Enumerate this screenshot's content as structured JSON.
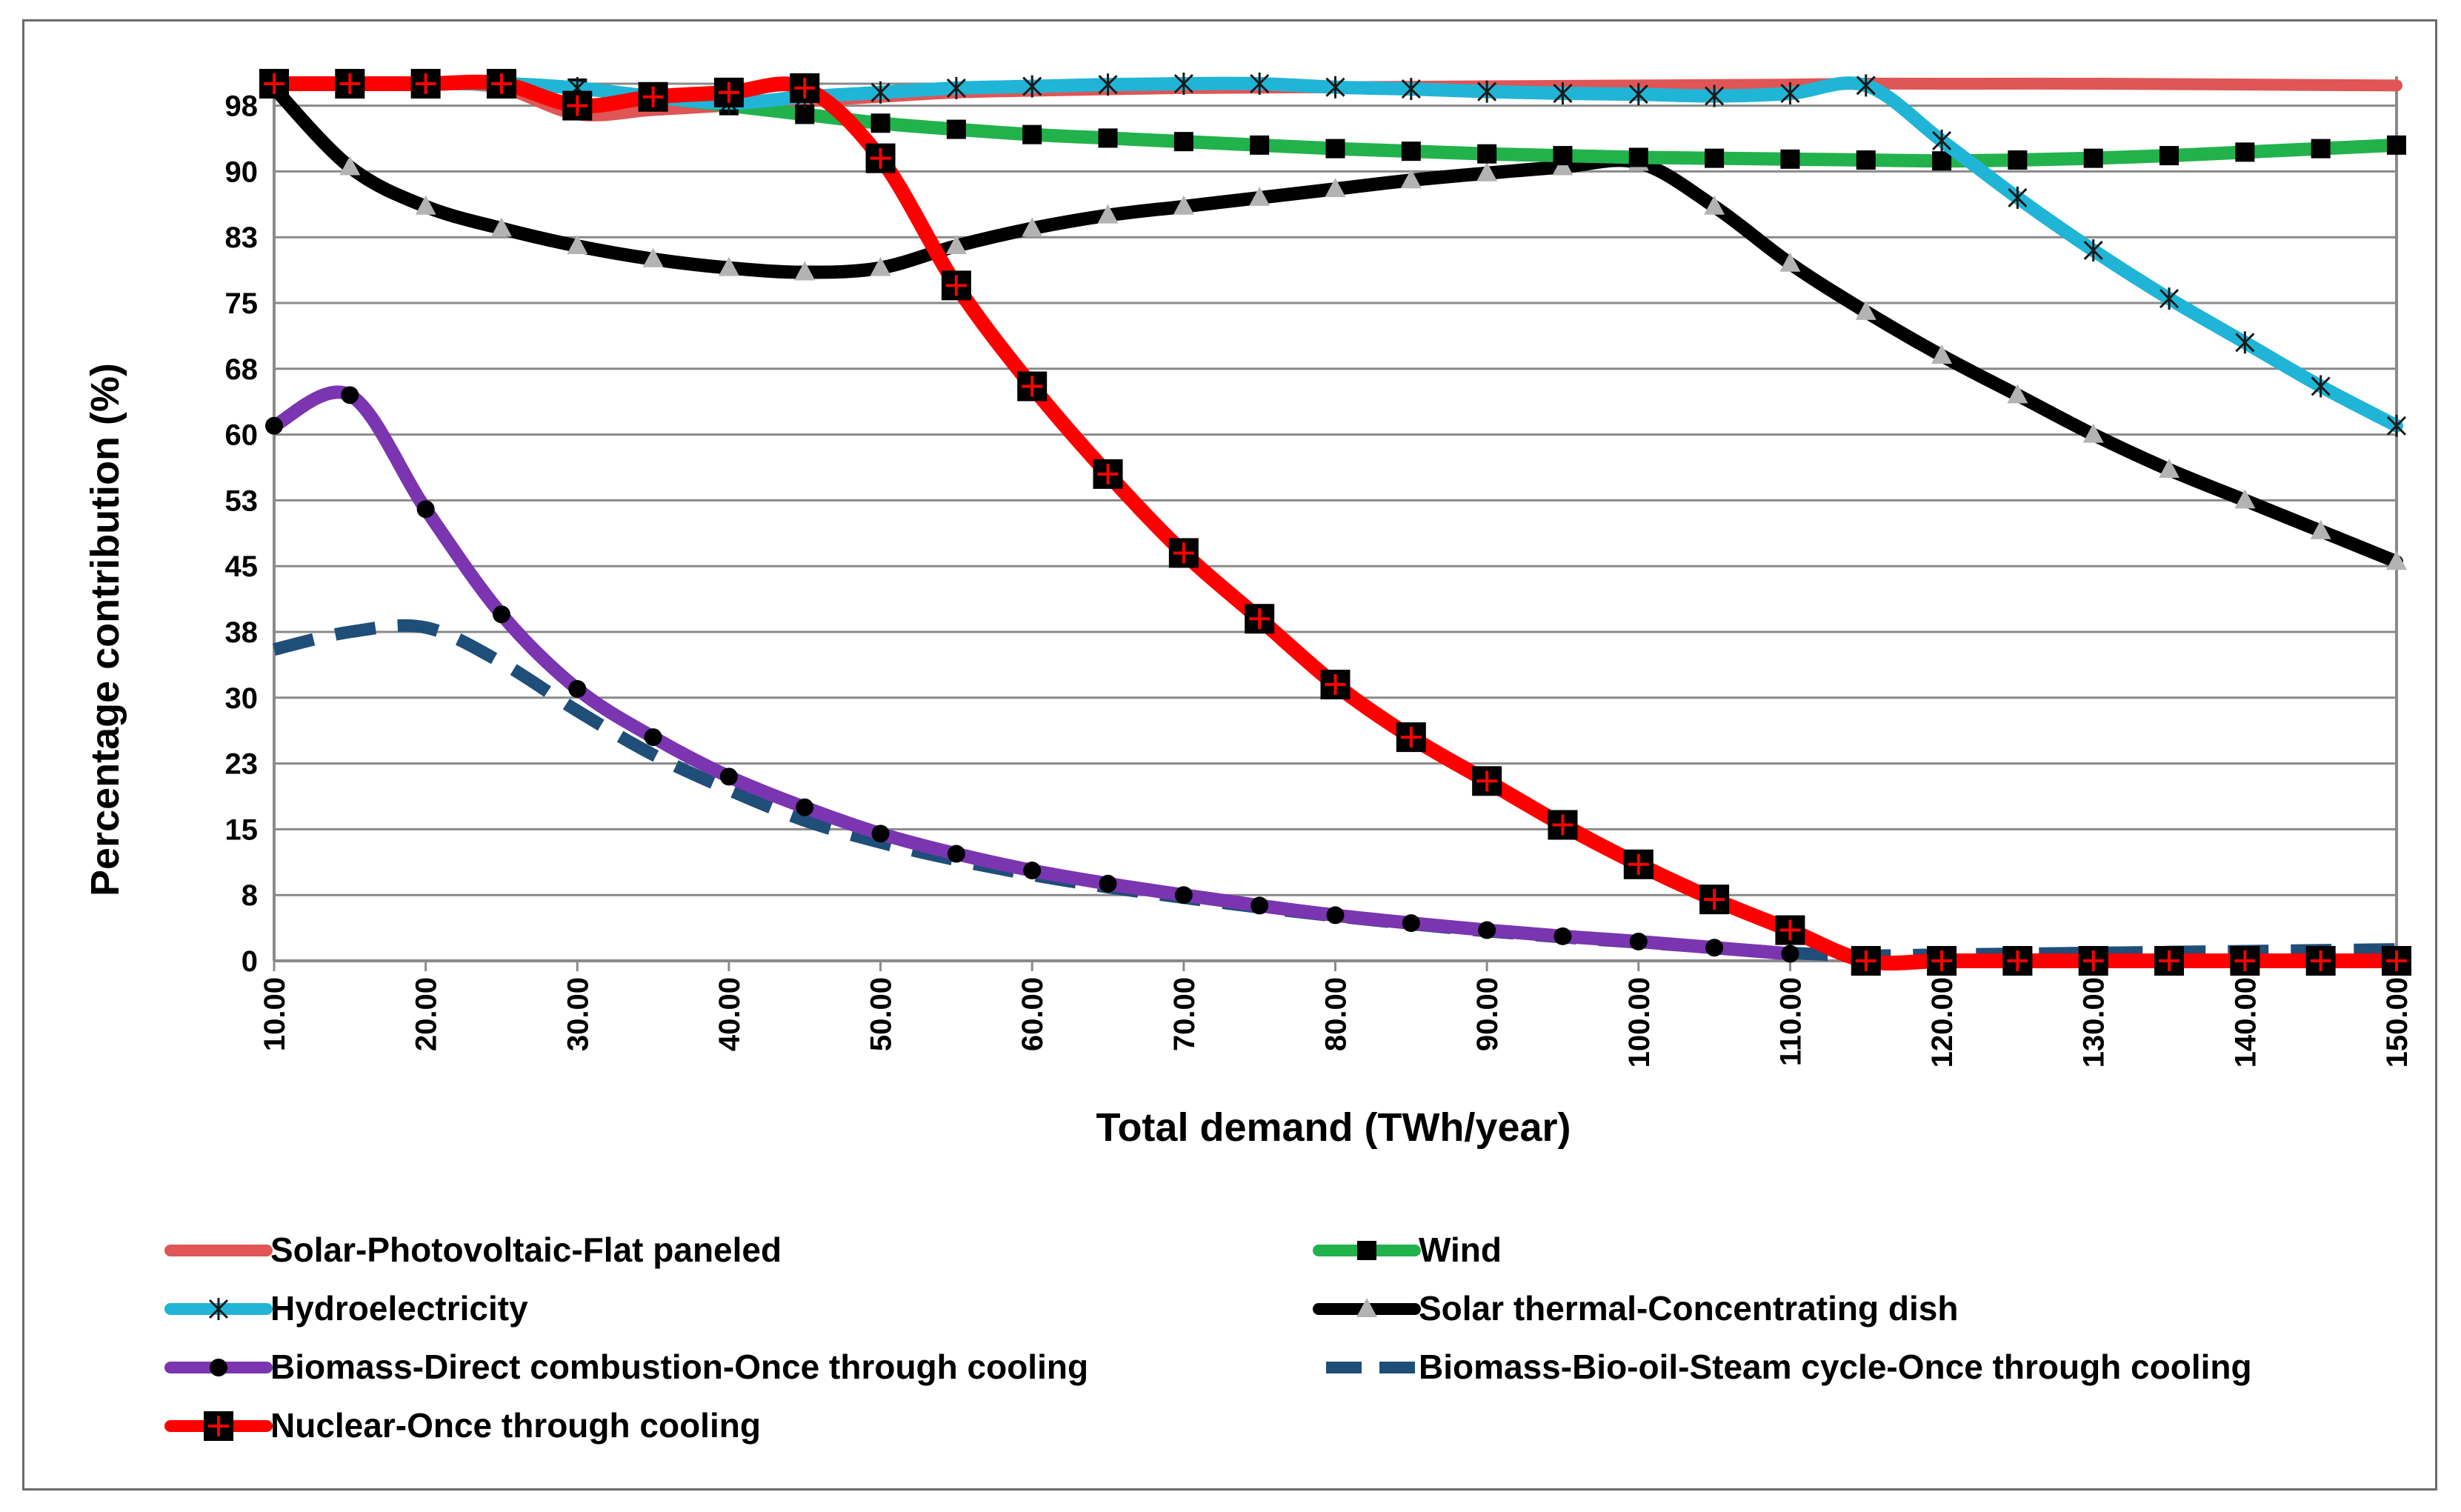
{
  "chart_data": {
    "type": "line",
    "title": "",
    "xlabel": "Total demand (TWh/year)",
    "ylabel": "Percentage contribution  (%)",
    "xlim": [
      10,
      150
    ],
    "ylim": [
      0,
      100
    ],
    "grid": true,
    "x_ticks": [
      "10.00",
      "20.00",
      "30.00",
      "40.00",
      "50.00",
      "60.00",
      "70.00",
      "80.00",
      "90.00",
      "100.00",
      "110.00",
      "120.00",
      "130.00",
      "140.00",
      "150.00"
    ],
    "y_ticks": [
      "0",
      "8",
      "15",
      "23",
      "30",
      "38",
      "45",
      "53",
      "60",
      "68",
      "75",
      "83",
      "90",
      "98"
    ],
    "y_tick_values": [
      0,
      7.5,
      15,
      22.5,
      30,
      37.5,
      45,
      52.5,
      60,
      67.5,
      75,
      82.5,
      90,
      97.5
    ],
    "legend_position": "bottom",
    "series": [
      {
        "name": "Solar-Photovoltaic-Flat paneled",
        "color": "#e05555",
        "style": "solid",
        "marker": "none",
        "x": [
          10,
          15,
          20,
          25,
          30,
          35,
          40,
          45,
          50,
          55,
          60,
          70,
          80,
          90,
          100,
          110,
          115,
          120,
          130,
          140,
          150
        ],
        "y": [
          100,
          100,
          100,
          99.5,
          96.5,
          97,
          97.5,
          98,
          98.5,
          99,
          99.2,
          99.5,
          99.6,
          99.7,
          99.8,
          99.9,
          100,
          100,
          100,
          99.9,
          99.8
        ]
      },
      {
        "name": "Wind",
        "color": "#22b24c",
        "style": "solid",
        "marker": "square",
        "x": [
          10,
          15,
          20,
          25,
          30,
          35,
          40,
          45,
          50,
          55,
          60,
          65,
          70,
          75,
          80,
          85,
          90,
          95,
          100,
          105,
          110,
          115,
          120,
          125,
          130,
          135,
          140,
          145,
          150
        ],
        "y": [
          100,
          100,
          100,
          100,
          99.5,
          98.5,
          97.5,
          96.5,
          95.5,
          94.8,
          94.2,
          93.8,
          93.4,
          93.0,
          92.6,
          92.3,
          92.0,
          91.8,
          91.6,
          91.5,
          91.4,
          91.3,
          91.2,
          91.3,
          91.5,
          91.8,
          92.2,
          92.6,
          93.0
        ]
      },
      {
        "name": "Hydroelectricity",
        "color": "#20b5d6",
        "style": "solid",
        "marker": "star",
        "x": [
          10,
          15,
          20,
          25,
          30,
          35,
          40,
          45,
          50,
          55,
          60,
          65,
          70,
          75,
          80,
          85,
          90,
          95,
          100,
          105,
          110,
          115,
          120,
          125,
          130,
          135,
          140,
          145,
          150
        ],
        "y": [
          100,
          100,
          100,
          100,
          99.5,
          98.5,
          97.8,
          98.5,
          99.0,
          99.5,
          99.7,
          99.9,
          100,
          100,
          99.6,
          99.4,
          99.1,
          98.9,
          98.8,
          98.6,
          98.9,
          99.8,
          93.5,
          87.0,
          81.0,
          75.5,
          70.5,
          65.5,
          61.0
        ]
      },
      {
        "name": "Solar thermal-Concentrating dish",
        "color": "#000000",
        "style": "solid",
        "marker": "triangle",
        "x": [
          10,
          15,
          20,
          25,
          30,
          35,
          40,
          45,
          50,
          55,
          60,
          65,
          70,
          75,
          80,
          85,
          90,
          95,
          100,
          105,
          110,
          115,
          120,
          125,
          130,
          135,
          140,
          145,
          150
        ],
        "y": [
          99.5,
          90.5,
          86.0,
          83.5,
          81.5,
          80.0,
          79.0,
          78.5,
          79.0,
          81.5,
          83.5,
          85.0,
          86.0,
          87.0,
          88.0,
          89.0,
          89.8,
          90.5,
          91.0,
          86.0,
          79.5,
          74.0,
          69.0,
          64.5,
          60.0,
          56.0,
          52.5,
          49.0,
          45.5
        ]
      },
      {
        "name": "Biomass-Direct combustion-Once through cooling",
        "color": "#7b35b0",
        "style": "solid",
        "marker": "circle",
        "x": [
          10,
          15,
          20,
          25,
          30,
          35,
          40,
          45,
          50,
          55,
          60,
          65,
          70,
          75,
          80,
          85,
          90,
          95,
          100,
          105,
          110
        ],
        "y": [
          61.0,
          64.5,
          51.5,
          39.5,
          31.0,
          25.5,
          21.0,
          17.5,
          14.5,
          12.2,
          10.3,
          8.8,
          7.5,
          6.3,
          5.2,
          4.3,
          3.5,
          2.8,
          2.2,
          1.5,
          0.8
        ]
      },
      {
        "name": "Biomass-Bio-oil-Steam cycle-Once through cooling",
        "color": "#1f4e79",
        "style": "dashed",
        "marker": "none",
        "x": [
          10,
          15,
          20,
          25,
          30,
          35,
          40,
          45,
          50,
          55,
          60,
          65,
          70,
          75,
          80,
          85,
          90,
          95,
          100,
          105,
          110,
          115,
          120,
          125,
          130,
          135,
          140,
          145,
          150
        ],
        "y": [
          35.5,
          37.5,
          38.0,
          34.0,
          28.5,
          23.5,
          19.5,
          16.0,
          13.5,
          11.5,
          9.8,
          8.4,
          7.2,
          6.1,
          5.1,
          4.2,
          3.4,
          2.7,
          2.1,
          1.5,
          0.9,
          0.6,
          0.7,
          0.8,
          0.9,
          1.0,
          1.1,
          1.2,
          1.3
        ]
      },
      {
        "name": "Nuclear-Once through cooling",
        "color": "#ff0000",
        "style": "solid",
        "marker": "crosssquare",
        "x": [
          10,
          15,
          20,
          25,
          30,
          35,
          40,
          45,
          50,
          55,
          60,
          65,
          70,
          75,
          80,
          85,
          90,
          95,
          100,
          105,
          110,
          115,
          120,
          125,
          130,
          135,
          140,
          145,
          150
        ],
        "y": [
          100,
          100,
          100,
          100,
          97.5,
          98.5,
          99.0,
          99.5,
          91.5,
          77.0,
          65.5,
          55.5,
          46.5,
          39.0,
          31.5,
          25.5,
          20.5,
          15.5,
          11.0,
          7.0,
          3.5,
          0,
          0,
          0,
          0,
          0,
          0,
          0,
          0
        ]
      }
    ]
  }
}
